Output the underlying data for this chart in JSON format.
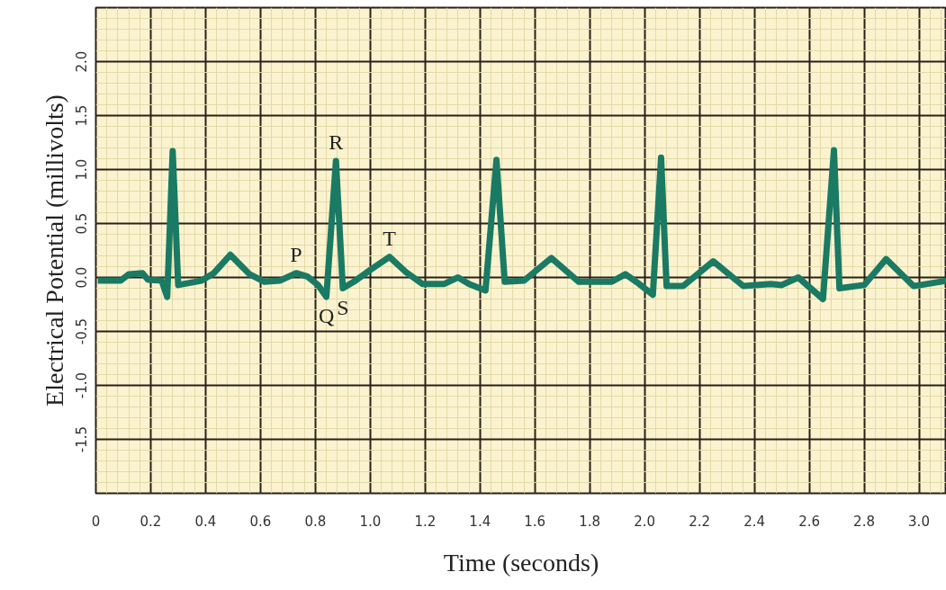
{
  "chart_data": {
    "type": "line",
    "xlabel": "Time (seconds)",
    "ylabel": "Electrical Potential (millivolts)",
    "x": [
      0.007,
      0.09,
      0.12,
      0.17,
      0.19,
      0.24,
      0.26,
      0.28,
      0.3,
      0.385,
      0.43,
      0.49,
      0.56,
      0.615,
      0.67,
      0.73,
      0.77,
      0.81,
      0.84,
      0.875,
      0.9,
      0.94,
      1.0,
      1.07,
      1.13,
      1.19,
      1.27,
      1.32,
      1.36,
      1.42,
      1.46,
      1.49,
      1.56,
      1.66,
      1.76,
      1.88,
      1.93,
      1.98,
      2.03,
      2.06,
      2.08,
      2.14,
      2.25,
      2.36,
      2.46,
      2.5,
      2.56,
      2.65,
      2.69,
      2.71,
      2.8,
      2.88,
      2.98,
      3.1
    ],
    "series": [
      {
        "color": "#1a7a64",
        "values": [
          -0.03,
          -0.03,
          0.03,
          0.04,
          -0.02,
          -0.03,
          -0.18,
          1.17,
          -0.07,
          -0.03,
          0.04,
          0.21,
          0.03,
          -0.04,
          -0.03,
          0.04,
          0.01,
          -0.07,
          -0.18,
          1.08,
          -0.1,
          -0.04,
          0.07,
          0.19,
          0.05,
          -0.06,
          -0.06,
          0.0,
          -0.06,
          -0.12,
          1.09,
          -0.04,
          -0.03,
          0.18,
          -0.04,
          -0.04,
          0.03,
          -0.06,
          -0.16,
          1.11,
          -0.08,
          -0.08,
          0.15,
          -0.08,
          -0.06,
          -0.07,
          0.0,
          -0.2,
          1.18,
          -0.1,
          -0.07,
          0.17,
          -0.08,
          -0.03
        ]
      }
    ],
    "xlim": [
      0,
      3.1
    ],
    "ylim": [
      -2.0,
      2.5
    ],
    "xticks": [
      0,
      0.2,
      0.4,
      0.6,
      0.8,
      {
        "value": 1,
        "label": "1.0"
      },
      1.2,
      1.4,
      1.6,
      1.8,
      {
        "value": 2,
        "label": "2.0"
      },
      2.2,
      2.4,
      2.6,
      2.8,
      {
        "value": 3,
        "label": "3.0"
      }
    ],
    "yticks": [
      {
        "value": -1.5,
        "label": "-1.5"
      },
      {
        "value": -1,
        "label": "-1.0"
      },
      {
        "value": -0.5,
        "label": "-0.5"
      },
      {
        "value": 0,
        "label": "0.0"
      },
      {
        "value": 0.5,
        "label": "0.5"
      },
      {
        "value": 1,
        "label": "1.0"
      },
      {
        "value": 1.5,
        "label": "1.5"
      },
      {
        "value": 2,
        "label": "2.0"
      }
    ],
    "grid": true,
    "line_style": "solid",
    "marker": "none",
    "annotations": [
      {
        "text": "P",
        "x": 0.73,
        "y": 0.04
      },
      {
        "text": "Q",
        "x": 0.84,
        "y": -0.18
      },
      {
        "text": "R",
        "x": 0.875,
        "y": 1.08
      },
      {
        "text": "S",
        "x": 0.9,
        "y": -0.1
      },
      {
        "text": "T",
        "x": 1.07,
        "y": 0.19
      }
    ]
  }
}
